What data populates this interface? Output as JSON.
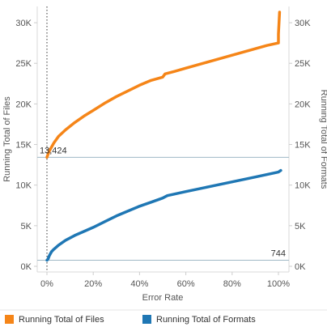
{
  "chart_data": {
    "type": "line",
    "xlabel": "Error Rate",
    "ylabel_left": "Running Total of Files",
    "ylabel_right": "Running Total of Formats",
    "xlim": [
      0,
      100
    ],
    "ylim": [
      0,
      32000
    ],
    "x_ticks": [
      "0%",
      "20%",
      "40%",
      "60%",
      "80%",
      "100%"
    ],
    "x_tick_values": [
      0,
      20,
      40,
      60,
      80,
      100
    ],
    "y_ticks": [
      "0K",
      "5K",
      "10K",
      "15K",
      "20K",
      "25K",
      "30K"
    ],
    "y_tick_values": [
      0,
      5000,
      10000,
      15000,
      20000,
      25000,
      30000
    ],
    "series": [
      {
        "name": "Running Total of Files",
        "color": "#f58518",
        "points": [
          [
            0,
            13424
          ],
          [
            1,
            14200
          ],
          [
            3,
            15200
          ],
          [
            5,
            16000
          ],
          [
            8,
            16800
          ],
          [
            12,
            17700
          ],
          [
            16,
            18500
          ],
          [
            20,
            19200
          ],
          [
            25,
            20100
          ],
          [
            30,
            20900
          ],
          [
            35,
            21600
          ],
          [
            40,
            22300
          ],
          [
            45,
            22900
          ],
          [
            50,
            23300
          ],
          [
            51,
            23700
          ],
          [
            55,
            24000
          ],
          [
            60,
            24400
          ],
          [
            65,
            24800
          ],
          [
            70,
            25200
          ],
          [
            75,
            25600
          ],
          [
            80,
            26000
          ],
          [
            85,
            26400
          ],
          [
            90,
            26800
          ],
          [
            95,
            27200
          ],
          [
            100,
            27500
          ],
          [
            100,
            28600
          ],
          [
            100.5,
            31300
          ]
        ]
      },
      {
        "name": "Running Total of Formats",
        "color": "#1f77b4",
        "points": [
          [
            0,
            744
          ],
          [
            0.5,
            900
          ],
          [
            1,
            1300
          ],
          [
            2,
            1800
          ],
          [
            3,
            2100
          ],
          [
            5,
            2600
          ],
          [
            8,
            3200
          ],
          [
            12,
            3800
          ],
          [
            16,
            4300
          ],
          [
            20,
            4800
          ],
          [
            25,
            5500
          ],
          [
            30,
            6200
          ],
          [
            35,
            6800
          ],
          [
            40,
            7400
          ],
          [
            45,
            7900
          ],
          [
            50,
            8400
          ],
          [
            52,
            8700
          ],
          [
            60,
            9200
          ],
          [
            70,
            9800
          ],
          [
            80,
            10400
          ],
          [
            90,
            11000
          ],
          [
            100,
            11600
          ],
          [
            101,
            11800
          ]
        ]
      }
    ],
    "reference_lines": [
      {
        "value": 13424,
        "label": "13,424",
        "series": "Running Total of Files"
      },
      {
        "value": 744,
        "label": "744",
        "series": "Running Total of Formats"
      }
    ],
    "x_reference_line": 0,
    "legend": {
      "position": "bottom",
      "items": [
        "Running Total of Files",
        "Running Total of Formats"
      ]
    },
    "grid": false
  }
}
